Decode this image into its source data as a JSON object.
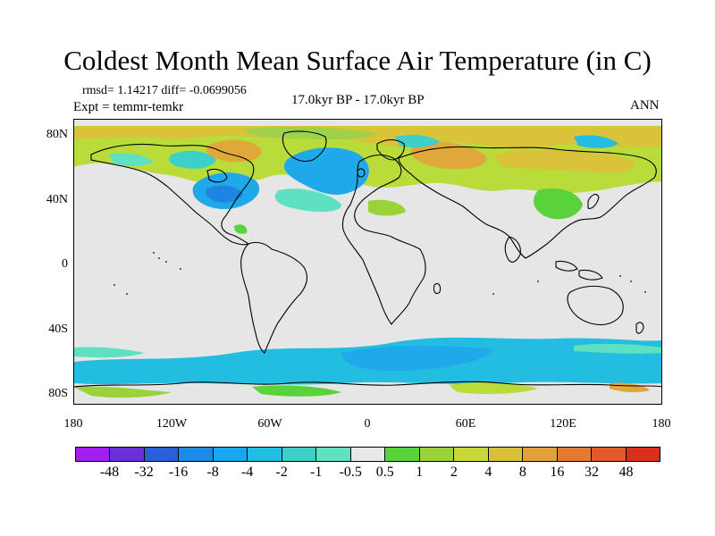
{
  "title": "Coldest Month Mean Surface Air Temperature (in C)",
  "stats": {
    "rmsd_diff": "rmsd= 1.14217 diff= -0.0699056",
    "expt": "Expt = temmr-temkr"
  },
  "period": "17.0kyr BP - 17.0kyr BP",
  "season": "ANN",
  "lat_labels": [
    "80N",
    "40N",
    "0",
    "40S",
    "80S"
  ],
  "lon_labels": [
    "180",
    "120W",
    "60W",
    "0",
    "60E",
    "120E",
    "180"
  ],
  "colorbar": {
    "colors": [
      "#a020f0",
      "#6a2fd8",
      "#2a5fd8",
      "#1d8ae6",
      "#19a6ee",
      "#22bde0",
      "#3ed0c8",
      "#5fe0c0",
      "#e8e8e8",
      "#5ad23c",
      "#9ad23a",
      "#c8d83a",
      "#d8c03a",
      "#e0a03a",
      "#e27a34",
      "#e05a2c",
      "#d8301e"
    ],
    "labels": [
      "-48",
      "-32",
      "-16",
      "-8",
      "-4",
      "-2",
      "-1",
      "-0.5",
      "0.5",
      "1",
      "2",
      "4",
      "8",
      "16",
      "32",
      "48"
    ]
  },
  "map": {
    "background_color": "#e6e6e6",
    "coastline_color": "#000000"
  }
}
